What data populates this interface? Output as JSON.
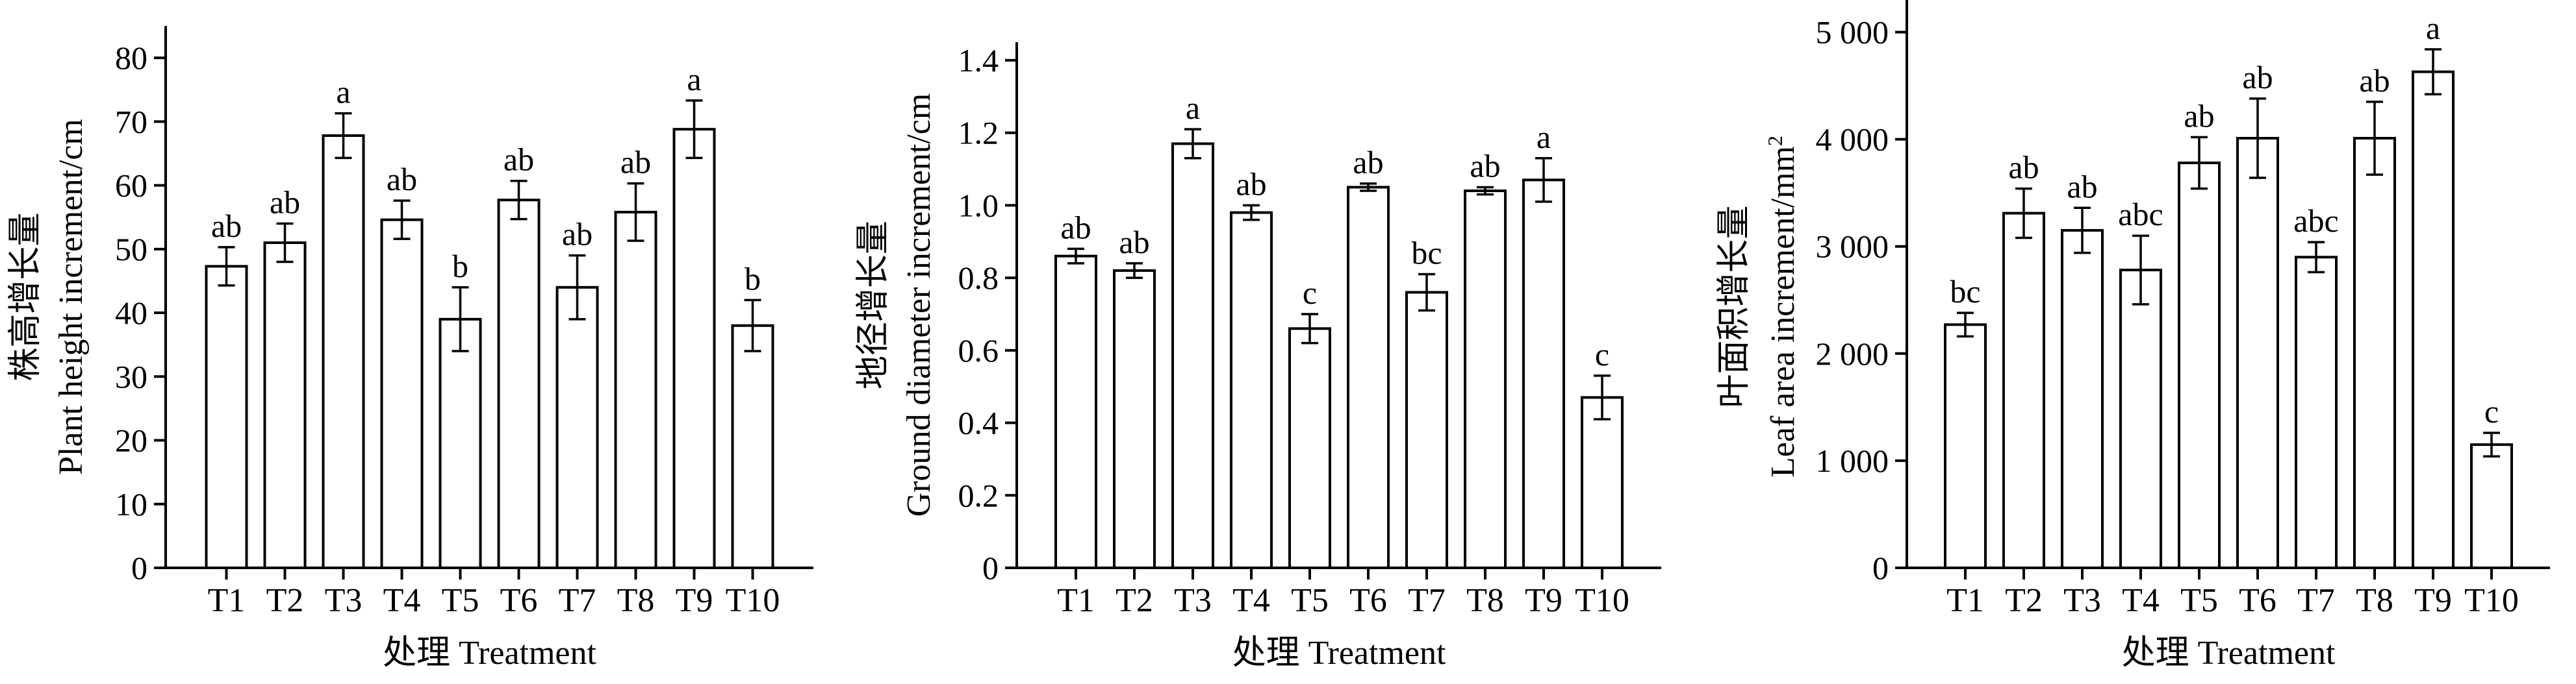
{
  "chart_data": [
    {
      "type": "bar",
      "categories": [
        "T1",
        "T2",
        "T3",
        "T4",
        "T5",
        "T6",
        "T7",
        "T8",
        "T9",
        "T10"
      ],
      "values": [
        47.3,
        51.0,
        67.8,
        54.6,
        39.0,
        57.7,
        44.0,
        55.8,
        68.8,
        38.0
      ],
      "errors": [
        3.0,
        3.0,
        3.5,
        3.0,
        5.0,
        3.0,
        5.0,
        4.5,
        4.5,
        4.0
      ],
      "data_labels": [
        "ab",
        "ab",
        "a",
        "ab",
        "b",
        "ab",
        "ab",
        "ab",
        "a",
        "b"
      ],
      "xlabel": "处理  Treatment",
      "ylabel_cn": "株高增长量",
      "ylabel_en": "Plant height increment/cm",
      "ylim": [
        0,
        85
      ],
      "yticks": [
        0,
        10,
        20,
        30,
        40,
        50,
        60,
        70,
        80
      ],
      "ytick_labels": [
        "0",
        "10",
        "20",
        "30",
        "40",
        "50",
        "60",
        "70",
        "80"
      ],
      "grid": false
    },
    {
      "type": "bar",
      "categories": [
        "T1",
        "T2",
        "T3",
        "T4",
        "T5",
        "T6",
        "T7",
        "T8",
        "T9",
        "T10"
      ],
      "values": [
        0.86,
        0.82,
        1.17,
        0.98,
        0.66,
        1.05,
        0.76,
        1.04,
        1.07,
        0.47
      ],
      "errors": [
        0.02,
        0.02,
        0.04,
        0.02,
        0.04,
        0.01,
        0.05,
        0.01,
        0.06,
        0.06
      ],
      "data_labels": [
        "ab",
        "ab",
        "a",
        "ab",
        "c",
        "ab",
        "bc",
        "ab",
        "a",
        "c"
      ],
      "xlabel": "处理  Treatment",
      "ylabel_cn": "地径增长量",
      "ylabel_en": "Ground diameter increment/cm",
      "ylim": [
        0,
        1.45
      ],
      "yticks": [
        0,
        0.2,
        0.4,
        0.6,
        0.8,
        1.0,
        1.2,
        1.4
      ],
      "ytick_labels": [
        "0",
        "0.2",
        "0.4",
        "0.6",
        "0.8",
        "1.0",
        "1.2",
        "1.4"
      ],
      "grid": false
    },
    {
      "type": "bar",
      "categories": [
        "T1",
        "T2",
        "T3",
        "T4",
        "T5",
        "T6",
        "T7",
        "T8",
        "T9",
        "T10"
      ],
      "values": [
        2270,
        3310,
        3150,
        2780,
        3780,
        4010,
        2900,
        4010,
        4630,
        1150
      ],
      "errors": [
        110,
        230,
        210,
        320,
        240,
        370,
        140,
        340,
        210,
        110
      ],
      "data_labels": [
        "bc",
        "ab",
        "ab",
        "abc",
        "ab",
        "ab",
        "abc",
        "ab",
        "a",
        "c"
      ],
      "xlabel": "处理  Treatment",
      "ylabel_cn": "叶面积增长量",
      "ylabel_en": "Leaf area increment/mm",
      "ylabel_superscript": "2",
      "ylim": [
        0,
        5300
      ],
      "yticks": [
        0,
        1000,
        2000,
        3000,
        4000,
        5000
      ],
      "ytick_labels": [
        "0",
        "1 000",
        "2 000",
        "3 000",
        "4 000",
        "5 000"
      ],
      "grid": false
    }
  ]
}
